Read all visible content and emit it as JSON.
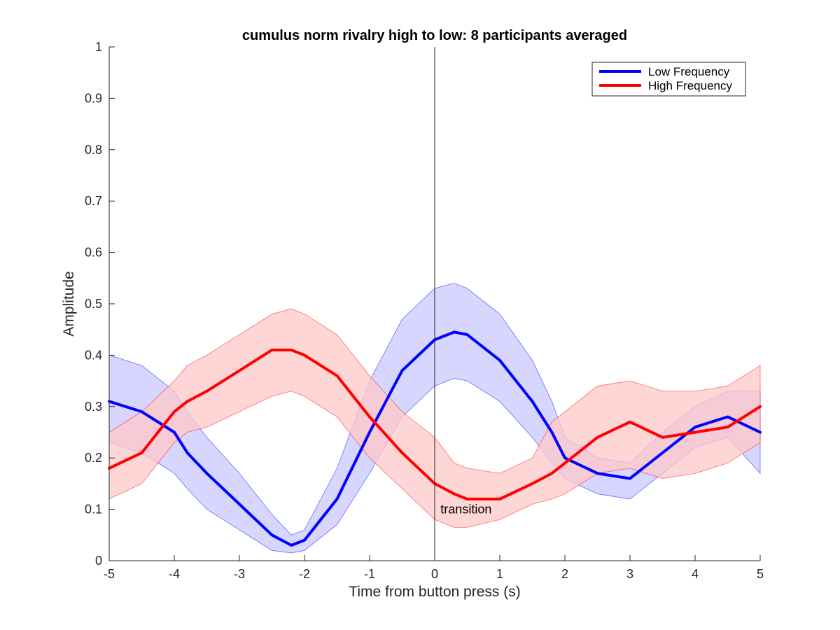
{
  "chart_data": {
    "type": "line",
    "title": "cumulus norm rivalry high to low: 8 participants averaged",
    "xlabel": "Time from button press (s)",
    "ylabel": "Amplitude",
    "xlim": [
      -5,
      5
    ],
    "ylim": [
      0,
      1
    ],
    "xticks": [
      -5,
      -4,
      -3,
      -2,
      -1,
      0,
      1,
      2,
      3,
      4,
      5
    ],
    "yticks": [
      0,
      0.1,
      0.2,
      0.3,
      0.4,
      0.5,
      0.6,
      0.7,
      0.8,
      0.9,
      1
    ],
    "xtick_labels": [
      "-5",
      "-4",
      "-3",
      "-2",
      "-1",
      "0",
      "1",
      "2",
      "3",
      "4",
      "5"
    ],
    "ytick_labels": [
      "0",
      "0.1",
      "0.2",
      "0.3",
      "0.4",
      "0.5",
      "0.6",
      "0.7",
      "0.8",
      "0.9",
      "1"
    ],
    "grid": false,
    "legend_position": "top-right",
    "vertical_line_x": 0,
    "annotation": {
      "text": "transition",
      "x": 0.1,
      "y": 0.1
    },
    "x": [
      -5,
      -4.5,
      -4,
      -3.8,
      -3.5,
      -3,
      -2.5,
      -2.2,
      -2,
      -1.5,
      -1,
      -0.5,
      0,
      0.3,
      0.5,
      1,
      1.5,
      1.8,
      2,
      2.5,
      3,
      3.5,
      4,
      4.5,
      5
    ],
    "series": [
      {
        "name": "Low Frequency",
        "color": "#0000ff",
        "band_color": "#c8c8ff",
        "values": [
          0.31,
          0.29,
          0.25,
          0.21,
          0.17,
          0.11,
          0.05,
          0.03,
          0.04,
          0.12,
          0.25,
          0.37,
          0.43,
          0.445,
          0.44,
          0.39,
          0.31,
          0.25,
          0.2,
          0.17,
          0.16,
          0.21,
          0.26,
          0.28,
          0.25
        ],
        "upper": [
          0.4,
          0.38,
          0.33,
          0.29,
          0.24,
          0.17,
          0.09,
          0.05,
          0.06,
          0.18,
          0.35,
          0.47,
          0.53,
          0.54,
          0.53,
          0.48,
          0.39,
          0.31,
          0.24,
          0.2,
          0.19,
          0.25,
          0.3,
          0.33,
          0.33
        ],
        "lower": [
          0.23,
          0.21,
          0.17,
          0.14,
          0.1,
          0.06,
          0.02,
          0.015,
          0.02,
          0.07,
          0.17,
          0.28,
          0.34,
          0.355,
          0.35,
          0.31,
          0.24,
          0.19,
          0.16,
          0.13,
          0.12,
          0.17,
          0.22,
          0.24,
          0.17
        ]
      },
      {
        "name": "High Frequency",
        "color": "#ff0000",
        "band_color": "#ffc8c8",
        "values": [
          0.18,
          0.21,
          0.29,
          0.31,
          0.33,
          0.37,
          0.41,
          0.41,
          0.4,
          0.36,
          0.28,
          0.21,
          0.15,
          0.13,
          0.12,
          0.12,
          0.15,
          0.17,
          0.19,
          0.24,
          0.27,
          0.24,
          0.25,
          0.26,
          0.3
        ],
        "upper": [
          0.25,
          0.29,
          0.35,
          0.38,
          0.4,
          0.44,
          0.48,
          0.49,
          0.48,
          0.44,
          0.36,
          0.29,
          0.24,
          0.19,
          0.18,
          0.17,
          0.2,
          0.27,
          0.29,
          0.34,
          0.35,
          0.33,
          0.33,
          0.34,
          0.38
        ],
        "lower": [
          0.12,
          0.15,
          0.23,
          0.25,
          0.26,
          0.29,
          0.32,
          0.33,
          0.32,
          0.28,
          0.2,
          0.14,
          0.08,
          0.065,
          0.065,
          0.08,
          0.11,
          0.12,
          0.13,
          0.17,
          0.18,
          0.16,
          0.17,
          0.19,
          0.23
        ]
      }
    ]
  }
}
